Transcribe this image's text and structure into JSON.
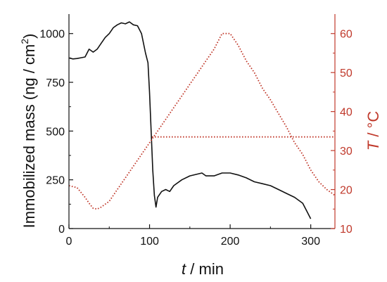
{
  "chart_data": {
    "type": "line",
    "xlabel": {
      "italic": "t",
      "rest": " / min"
    },
    "ylabel": {
      "text": "Immobilized mass (ng / cm",
      "sup": "2",
      "close": ")"
    },
    "y2label": {
      "italic": "T",
      "rest": " / °C"
    },
    "xlim": [
      0,
      330
    ],
    "ylim": [
      0,
      1100
    ],
    "y2lim": [
      10,
      65
    ],
    "x_ticks": [
      "0",
      "100",
      "200",
      "300"
    ],
    "y_ticks": [
      "0",
      "250",
      "500",
      "750",
      "1000"
    ],
    "y2_ticks": [
      "10",
      "20",
      "30",
      "40",
      "50",
      "60"
    ],
    "colors": {
      "mass": "#111111",
      "temperature": "#c0392b"
    },
    "series": [
      {
        "axis": "left",
        "style": "solid",
        "x": [
          0,
          5,
          10,
          15,
          20,
          25,
          30,
          35,
          40,
          45,
          50,
          55,
          60,
          65,
          70,
          75,
          80,
          85,
          90,
          95,
          98,
          100,
          102,
          104,
          106,
          108,
          110,
          115,
          120,
          125,
          130,
          140,
          150,
          160,
          165,
          170,
          180,
          190,
          200,
          210,
          220,
          230,
          240,
          250,
          260,
          270,
          280,
          290,
          295,
          300
        ],
        "y": [
          875,
          870,
          872,
          876,
          880,
          920,
          905,
          920,
          950,
          980,
          1000,
          1030,
          1045,
          1055,
          1050,
          1060,
          1045,
          1040,
          1000,
          900,
          850,
          700,
          500,
          300,
          170,
          110,
          160,
          190,
          200,
          190,
          220,
          250,
          270,
          280,
          285,
          270,
          270,
          285,
          285,
          275,
          260,
          240,
          230,
          220,
          200,
          180,
          160,
          130,
          90,
          50
        ]
      },
      {
        "axis": "right",
        "style": "dotted",
        "x": [
          0,
          10,
          20,
          25,
          30,
          35,
          40,
          50,
          60,
          70,
          80,
          90,
          100,
          110,
          120,
          130,
          140,
          150,
          160,
          170,
          180,
          190,
          200,
          210,
          220,
          230,
          240,
          250,
          260,
          270,
          280,
          290,
          300,
          310,
          320,
          330
        ],
        "y": [
          21,
          20.5,
          18,
          16.5,
          15.2,
          15,
          15.5,
          17,
          20,
          23,
          26,
          29,
          32,
          35,
          38,
          41,
          44,
          47,
          50,
          53,
          56,
          60,
          60,
          57,
          53,
          50,
          46,
          43,
          39.5,
          36,
          32,
          29,
          25,
          22,
          20,
          18.5
        ]
      },
      {
        "axis": "right",
        "style": "dotted",
        "x": [
          103,
          330
        ],
        "y": [
          33.5,
          33.5
        ]
      }
    ]
  }
}
